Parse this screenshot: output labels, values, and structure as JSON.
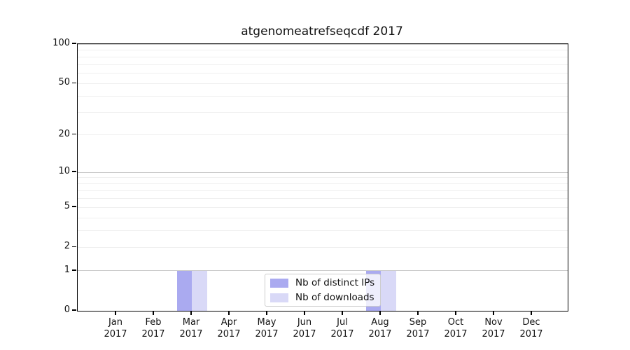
{
  "title": "atgenomeatrefseqcdf 2017",
  "chart_data": {
    "type": "bar",
    "title": "atgenomeatrefseqcdf 2017",
    "categories": [
      "Jan\n2017",
      "Feb\n2017",
      "Mar\n2017",
      "Apr\n2017",
      "May\n2017",
      "Jun\n2017",
      "Jul\n2017",
      "Aug\n2017",
      "Sep\n2017",
      "Oct\n2017",
      "Nov\n2017",
      "Dec\n2017"
    ],
    "series": [
      {
        "name": "Nb of distinct IPs",
        "color": "#aaaaf0",
        "values": [
          0,
          0,
          1,
          0,
          0,
          0,
          0,
          1,
          0,
          0,
          0,
          0
        ]
      },
      {
        "name": "Nb of downloads",
        "color": "#d9d9f7",
        "values": [
          0,
          0,
          1,
          0,
          0,
          0,
          0,
          1,
          0,
          0,
          0,
          0
        ]
      }
    ],
    "xlabel": "",
    "ylabel": "",
    "yscale": "log1p",
    "ylim": [
      0,
      100
    ],
    "ytick_values": [
      0,
      1,
      2,
      5,
      10,
      20,
      50,
      100
    ],
    "grid": "horizontal",
    "grid_major_values": [
      1,
      10,
      100
    ],
    "grid_minor_values": [
      2,
      3,
      4,
      5,
      6,
      7,
      8,
      9,
      20,
      30,
      40,
      50,
      60,
      70,
      80,
      90
    ],
    "legend_position": "lower center"
  },
  "colors": {
    "background": "#ffffff",
    "spine": "#000000",
    "grid_major": "#c9c9c9",
    "grid_minor": "#efefef",
    "bar_distinct_ips": "#aaaaf0",
    "bar_downloads": "#d9d9f7",
    "legend_border": "#cccccc"
  }
}
